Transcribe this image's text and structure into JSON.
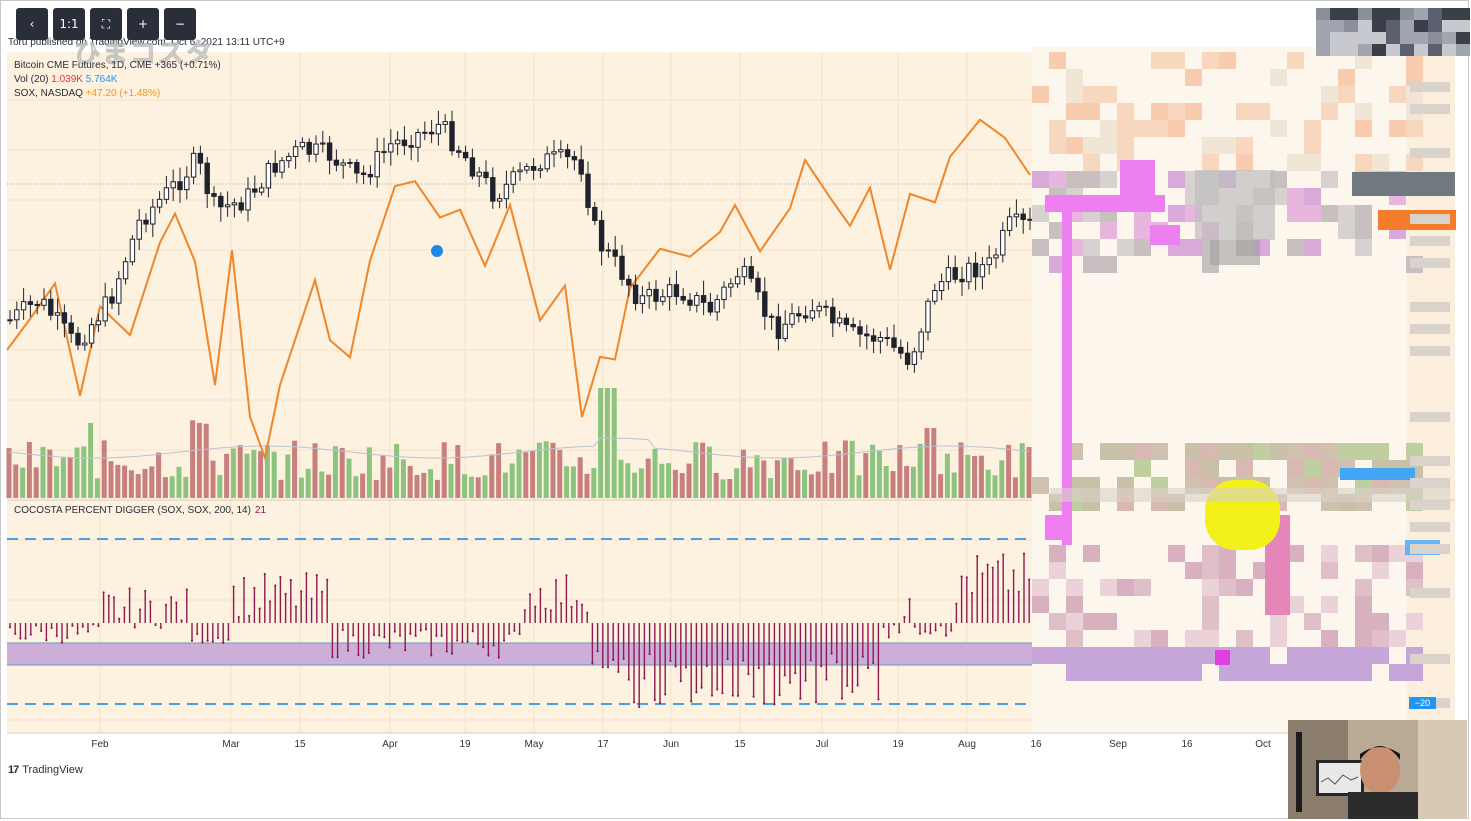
{
  "toolbar": {
    "back_label": "‹",
    "one_to_one_label": "1:1",
    "fullscreen_label": "⛶",
    "zoom_in_label": "+",
    "zoom_out_label": "−"
  },
  "header": {
    "published_text": "Toru published on TradingView.com, Oct 6, 2021 13:11 UTC+9",
    "watermark": "ひまコスタ"
  },
  "legend": {
    "main_series": "Bitcoin CME Futures, 1D, CME",
    "main_change": "+365 (+0.71%)",
    "vol_label": "Vol (20)",
    "vol_value": "1.039K",
    "vol_ma": "5.764K",
    "compare_series": "SOX, NASDAQ",
    "compare_change": "+47.20 (+1.48%)"
  },
  "indicator": {
    "name": "COCOSTA PERCENT DIGGER (SOX, SOX, 200, 14)",
    "value": "21",
    "axis_tag": "−20"
  },
  "footer": {
    "brand": "TradingView"
  },
  "colors": {
    "background": "#fdf1e0",
    "candle": "#1e222d",
    "sox_line": "#f0862a",
    "vol_up": "#8cc37e",
    "vol_down": "#c7807e",
    "indicator": "#8e1a52",
    "band": "#c6a6d8",
    "dashed": "#4a9fe8"
  },
  "chart_data": {
    "type": "candlestick",
    "x_axis_labels": [
      "Feb",
      "Mar",
      "15",
      "Apr",
      "19",
      "May",
      "17",
      "Jun",
      "15",
      "Jul",
      "19",
      "Aug",
      "16",
      "Sep",
      "16",
      "Oct"
    ],
    "series": [
      {
        "name": "Bitcoin CME Futures, 1D, CME",
        "type": "candlestick"
      },
      {
        "name": "SOX, NASDAQ",
        "type": "line"
      },
      {
        "name": "Vol (20)",
        "type": "histogram"
      },
      {
        "name": "COCOSTA PERCENT DIGGER (SOX, SOX, 200, 14)",
        "type": "histogram"
      }
    ],
    "indicator_level_lines": [
      20,
      -20
    ],
    "annotations": [
      "blue dot marker in April"
    ]
  }
}
